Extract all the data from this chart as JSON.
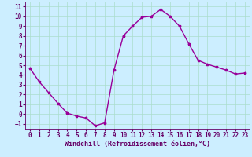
{
  "x": [
    0,
    1,
    2,
    3,
    4,
    5,
    6,
    7,
    8,
    9,
    10,
    11,
    12,
    13,
    14,
    15,
    16,
    17,
    18,
    19,
    20,
    21,
    22,
    23
  ],
  "y": [
    4.7,
    3.3,
    2.2,
    1.1,
    0.1,
    -0.2,
    -0.4,
    -1.2,
    -0.9,
    4.5,
    8.0,
    9.0,
    9.9,
    10.0,
    10.7,
    10.0,
    9.0,
    7.2,
    5.5,
    5.1,
    4.8,
    4.5,
    4.1,
    4.2
  ],
  "line_color": "#990099",
  "marker": "*",
  "marker_size": 2.5,
  "bg_color": "#cceeff",
  "grid_color": "#aaddcc",
  "xlabel": "Windchill (Refroidissement éolien,°C)",
  "xlabel_color": "#660066",
  "tick_color": "#660066",
  "ylim": [
    -1.5,
    11.5
  ],
  "xlim": [
    -0.5,
    23.5
  ],
  "yticks": [
    -1,
    0,
    1,
    2,
    3,
    4,
    5,
    6,
    7,
    8,
    9,
    10,
    11
  ],
  "xticks": [
    0,
    1,
    2,
    3,
    4,
    5,
    6,
    7,
    8,
    9,
    10,
    11,
    12,
    13,
    14,
    15,
    16,
    17,
    18,
    19,
    20,
    21,
    22,
    23
  ],
  "line_width": 1.0,
  "font_size": 5.5,
  "xlabel_fontsize": 6.0
}
